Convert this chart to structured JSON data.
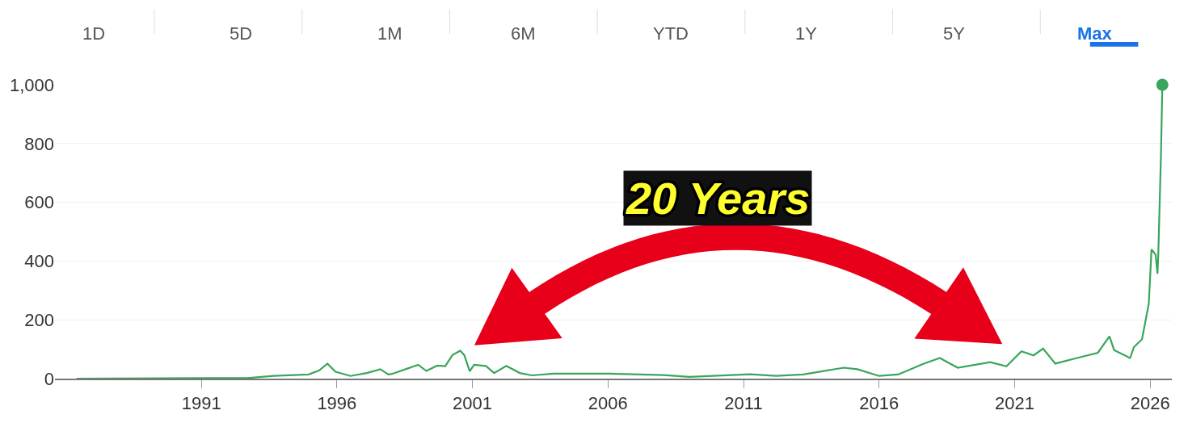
{
  "chart_data": {
    "type": "line",
    "annotations": [
      "1D",
      "5D",
      "1M",
      "6M",
      "YTD",
      "1Y",
      "5Y",
      "Max",
      "20 Years"
    ],
    "x": [
      1986.4,
      1992.7,
      1993.66,
      1994.96,
      1995.35,
      1995.65,
      1995.95,
      1996.5,
      1997.1,
      1997.6,
      1997.9,
      1998.03,
      1999.0,
      1999.3,
      1999.7,
      2000.0,
      2000.26,
      2000.55,
      2000.7,
      2000.9,
      2001.06,
      2001.5,
      2001.8,
      2002.25,
      2002.75,
      2003.2,
      2004.0,
      2006.05,
      2008.05,
      2009.0,
      2011.25,
      2012.2,
      2013.2,
      2014.7,
      2015.2,
      2016.0,
      2016.7,
      2017.65,
      2018.24,
      2018.9,
      2020.1,
      2020.7,
      2021.25,
      2021.7,
      2022.05,
      2022.5,
      2023.3,
      2024.07,
      2024.5,
      2024.67,
      2025.26,
      2025.4,
      2025.7,
      2025.95,
      2026.05,
      2026.2,
      2026.27,
      2026.3,
      2026.4,
      2026.45
    ],
    "series": [
      {
        "color": "#3aa55c",
        "values": [
          0,
          2,
          9,
          14,
          28,
          51,
          23,
          9,
          19,
          32,
          14,
          16,
          47,
          26,
          44,
          42,
          80,
          95,
          80,
          25,
          47,
          43,
          19,
          43,
          19,
          11,
          17,
          17,
          12,
          6,
          15,
          9,
          14,
          37,
          32,
          9,
          14,
          51,
          70,
          37,
          56,
          42,
          93,
          79,
          102,
          51,
          70,
          88,
          144,
          97,
          70,
          107,
          134,
          255,
          440,
          422,
          357,
          422,
          765,
          1000
        ]
      },
      {
        "type": "scatter",
        "color": "#3aa55c",
        "x": [
          2026.45
        ],
        "values": [
          1000
        ],
        "marker": "circle"
      }
    ],
    "xlim": [
      1985.6,
      2026.8
    ],
    "xticks": [
      1991,
      1996,
      2001,
      2006,
      2011,
      2016,
      2021,
      2026
    ],
    "ylim": [
      0,
      1000
    ],
    "yticks": [
      0,
      200,
      400,
      600,
      800,
      {
        "value": 1000,
        "label": "1,000"
      }
    ],
    "grid": "y",
    "marker": "none",
    "line_style": "solid"
  }
}
